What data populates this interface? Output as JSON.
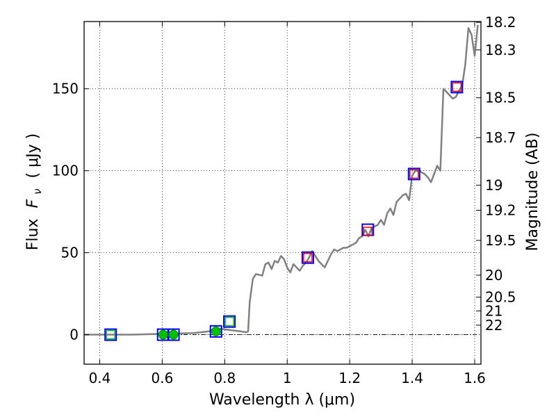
{
  "chart_data": {
    "type": "scatter",
    "xlabel": "Wavelength  λ (μm)",
    "ylabel_prefix": "Flux",
    "ylabel_symbol": "F",
    "ylabel_subscript": "ν",
    "ylabel_suffix": "( μJy )",
    "y2label": "Magnitude (AB)",
    "xlim": [
      0.35,
      1.62
    ],
    "ylim": [
      -18,
      191
    ],
    "x_ticks": [
      0.4,
      0.6,
      0.8,
      1.0,
      1.2,
      1.4,
      1.6
    ],
    "x_tick_labels": [
      "0.4",
      "0.6",
      "0.8",
      "1",
      "1.2",
      "1.4",
      "1.6"
    ],
    "y_ticks": [
      0,
      50,
      100,
      150
    ],
    "y_tick_labels": [
      "0",
      "50",
      "100",
      "150"
    ],
    "y2_ticks": [
      {
        "label": "18.2",
        "flux": 190.5
      },
      {
        "label": "18.3",
        "flux": 173.7
      },
      {
        "label": "18.5",
        "flux": 144.5
      },
      {
        "label": "18.7",
        "flux": 120.2
      },
      {
        "label": "19",
        "flux": 91.2
      },
      {
        "label": "19.2",
        "flux": 75.9
      },
      {
        "label": "19.5",
        "flux": 57.5
      },
      {
        "label": "20",
        "flux": 36.3
      },
      {
        "label": "20.5",
        "flux": 22.9
      },
      {
        "label": "21",
        "flux": 14.5
      },
      {
        "label": "22",
        "flux": 5.8
      }
    ],
    "grid": true,
    "zero_line": true,
    "colors": {
      "model": "#808080",
      "blue_box": "#0000ff",
      "red_box": "#ff0000",
      "green_box": "#00bf00",
      "green_dot": "#00c000"
    },
    "series": [
      {
        "style": "gray-line",
        "x": [
          0.35,
          0.4,
          0.5,
          0.6,
          0.7,
          0.75,
          0.77,
          0.79,
          0.81,
          0.83,
          0.85,
          0.87,
          0.875,
          0.88,
          0.89,
          0.9,
          0.92,
          0.93,
          0.94,
          0.95,
          0.96,
          0.97,
          0.98,
          0.99,
          1.0,
          1.01,
          1.02,
          1.03,
          1.04,
          1.05,
          1.06,
          1.07,
          1.08,
          1.09,
          1.1,
          1.12,
          1.13,
          1.14,
          1.15,
          1.16,
          1.17,
          1.18,
          1.19,
          1.2,
          1.21,
          1.22,
          1.23,
          1.24,
          1.25,
          1.26,
          1.27,
          1.28,
          1.29,
          1.3,
          1.31,
          1.32,
          1.33,
          1.34,
          1.35,
          1.36,
          1.37,
          1.38,
          1.39,
          1.4,
          1.41,
          1.42,
          1.43,
          1.44,
          1.45,
          1.46,
          1.47,
          1.48,
          1.49,
          1.5,
          1.51,
          1.52,
          1.53,
          1.54,
          1.55,
          1.56,
          1.57,
          1.58,
          1.59,
          1.6,
          1.61
        ],
        "y": [
          0,
          0,
          0,
          0.5,
          1,
          2,
          4,
          3.5,
          3,
          2.5,
          2,
          1.5,
          2,
          20,
          34,
          37,
          36,
          43,
          44,
          40,
          45,
          44,
          48,
          46,
          41,
          38,
          43,
          41,
          39,
          42,
          44,
          47,
          51,
          48,
          45,
          41,
          45,
          49,
          52,
          51,
          52,
          53,
          53,
          54,
          55,
          56,
          59,
          60,
          64,
          60,
          65,
          66,
          67,
          70,
          67,
          74,
          77,
          73,
          81,
          83,
          85,
          86,
          82,
          97,
          100,
          100,
          99,
          98,
          96,
          93,
          98,
          103,
          100,
          150,
          148,
          146,
          144,
          145,
          149,
          152,
          165,
          187,
          183,
          170,
          189
        ]
      },
      {
        "style": "blue-box",
        "x": [
          0.435,
          0.603,
          0.636,
          0.772,
          0.815,
          1.066,
          1.258,
          1.406,
          1.543
        ],
        "y": [
          0,
          0,
          0,
          2,
          8,
          47,
          64,
          98,
          151
        ]
      },
      {
        "style": "red-box",
        "x": [
          1.066,
          1.258,
          1.406,
          1.543
        ],
        "y": [
          47,
          63,
          98,
          151
        ]
      },
      {
        "style": "green-box",
        "x": [
          0.435,
          0.815
        ],
        "y": [
          0,
          8
        ]
      },
      {
        "style": "green-dot",
        "x": [
          0.603,
          0.636,
          0.772
        ],
        "y": [
          0,
          0,
          2
        ]
      }
    ]
  }
}
